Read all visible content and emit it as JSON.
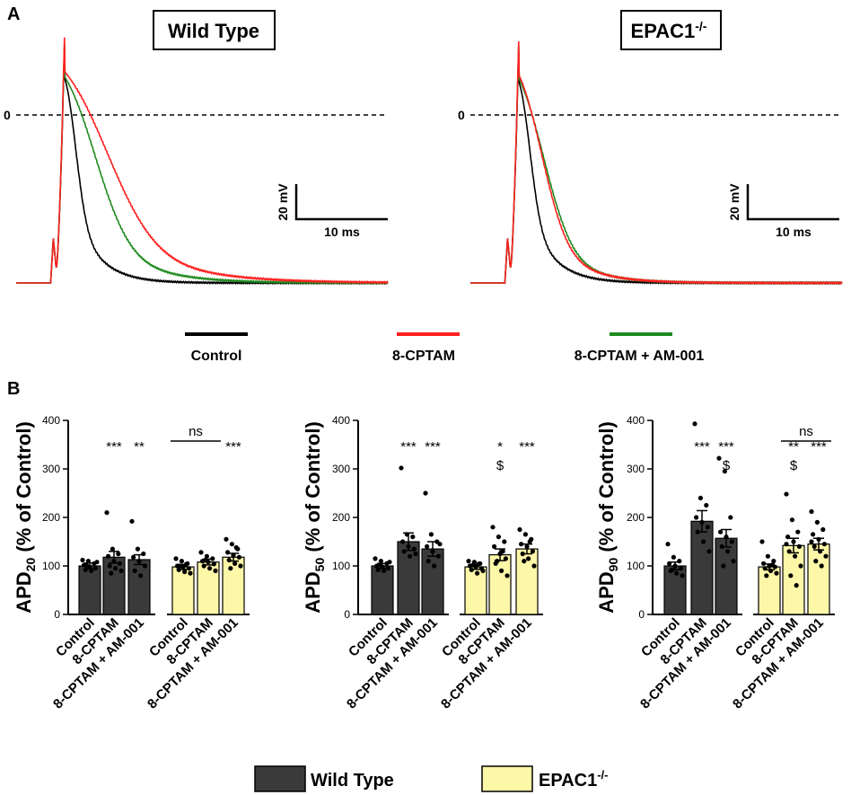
{
  "panel_a": {
    "label": "A",
    "zero_label": "0",
    "scale_bar": {
      "voltage": "20 mV",
      "time": "10 ms"
    },
    "traces": [
      {
        "title": "Wild Type",
        "title_sup": ""
      },
      {
        "title": "EPAC1",
        "title_sup": "-/-"
      }
    ],
    "legend": [
      {
        "label": "Control",
        "color": "#000000"
      },
      {
        "label": "8-CPTAM",
        "color": "#ff2020"
      },
      {
        "label": "8-CPTAM + AM-001",
        "color": "#1f8a1f"
      }
    ]
  },
  "panel_b": {
    "label": "B",
    "bar_colors": {
      "wild_type": "#3a3a3a",
      "epac": "#fdf7a8"
    },
    "legend": [
      {
        "label": "Wild Type",
        "sup": ""
      },
      {
        "label": "EPAC1",
        "sup": "-/-"
      }
    ]
  },
  "chart_data": [
    {
      "type": "line",
      "title": "Wild Type",
      "xlabel": "",
      "ylabel": "",
      "x_unit": "ms",
      "y_unit": "mV",
      "ylim": [
        -84,
        50
      ],
      "series": [
        {
          "name": "Control",
          "color": "#000000",
          "peak": 40,
          "apd50_ms": 2.6,
          "decay_ms": 3.6,
          "resting": -80
        },
        {
          "name": "8-CPTAM",
          "color": "#ff2020",
          "peak": 44,
          "apd50_ms": 10.5,
          "decay_ms": 9.0,
          "resting": -80
        },
        {
          "name": "8-CPTAM + AM-001",
          "color": "#1f8a1f",
          "peak": 41,
          "apd50_ms": 7.5,
          "decay_ms": 6.5,
          "resting": -80
        }
      ]
    },
    {
      "type": "line",
      "title": "EPAC1-/-",
      "xlabel": "",
      "ylabel": "",
      "x_unit": "ms",
      "y_unit": "mV",
      "ylim": [
        -84,
        50
      ],
      "series": [
        {
          "name": "Control",
          "color": "#000000",
          "peak": 38,
          "apd50_ms": 2.6,
          "decay_ms": 3.6,
          "resting": -80
        },
        {
          "name": "8-CPTAM",
          "color": "#ff2020",
          "peak": 42,
          "apd50_ms": 5.6,
          "decay_ms": 5.0,
          "resting": -80
        },
        {
          "name": "8-CPTAM + AM-001",
          "color": "#1f8a1f",
          "peak": 40,
          "apd50_ms": 6.2,
          "decay_ms": 5.0,
          "resting": -80
        }
      ]
    },
    {
      "type": "bar",
      "ylabel_main": "APD",
      "ylabel_sub": "20",
      "ylabel_rest": " (% of Control)",
      "ylim": [
        0,
        400
      ],
      "yticks": [
        0,
        100,
        200,
        300,
        400
      ],
      "categories": [
        "Control",
        "8-CPTAM",
        "8-CPTAM + AM-001",
        "Control",
        "8-CPTAM",
        "8-CPTAM + AM-001"
      ],
      "groups": [
        "Wild Type",
        "Wild Type",
        "Wild Type",
        "EPAC1-/-",
        "EPAC1-/-",
        "EPAC1-/-"
      ],
      "values": [
        100,
        118,
        113,
        98,
        108,
        118
      ],
      "sem": [
        6,
        12,
        10,
        5,
        6,
        8
      ],
      "points": [
        [
          112,
          110,
          105,
          102,
          98,
          95,
          92,
          90,
          108,
          100
        ],
        [
          210,
          135,
          125,
          120,
          110,
          105,
          100,
          95,
          90,
          85
        ],
        [
          192,
          135,
          125,
          118,
          110,
          100,
          90,
          80
        ],
        [
          115,
          110,
          105,
          100,
          98,
          95,
          92,
          88,
          85,
          100,
          103
        ],
        [
          128,
          120,
          115,
          110,
          108,
          104,
          100,
          95,
          90,
          112
        ],
        [
          155,
          145,
          135,
          128,
          122,
          118,
          112,
          105,
          100,
          95,
          138
        ]
      ],
      "stars": [
        "",
        "***",
        "**",
        "",
        "",
        "***"
      ],
      "dollars": [
        "",
        "",
        "",
        "",
        "",
        ""
      ],
      "brackets": [
        {
          "from": 3,
          "to": 4,
          "label": "ns"
        }
      ]
    },
    {
      "type": "bar",
      "ylabel_main": "APD",
      "ylabel_sub": "50",
      "ylabel_rest": " (% of Control)",
      "ylim": [
        0,
        400
      ],
      "yticks": [
        0,
        100,
        200,
        300,
        400
      ],
      "categories": [
        "Control",
        "8-CPTAM",
        "8-CPTAM + AM-001",
        "Control",
        "8-CPTAM",
        "8-CPTAM + AM-001"
      ],
      "groups": [
        "Wild Type",
        "Wild Type",
        "Wild Type",
        "EPAC1-/-",
        "EPAC1-/-",
        "EPAC1-/-"
      ],
      "values": [
        100,
        150,
        135,
        98,
        123,
        135
      ],
      "sem": [
        5,
        18,
        15,
        5,
        12,
        10
      ],
      "points": [
        [
          115,
          110,
          105,
          100,
          98,
          95,
          92,
          90,
          108,
          102
        ],
        [
          302,
          165,
          160,
          150,
          140,
          135,
          130,
          120,
          125
        ],
        [
          250,
          165,
          150,
          140,
          130,
          120,
          110,
          100,
          145
        ],
        [
          110,
          108,
          105,
          100,
          98,
          95,
          92,
          85,
          90,
          102,
          104
        ],
        [
          180,
          160,
          150,
          140,
          125,
          115,
          105,
          90,
          80,
          110,
          130
        ],
        [
          175,
          165,
          155,
          145,
          140,
          130,
          125,
          115,
          100,
          110,
          150
        ]
      ],
      "stars": [
        "",
        "***",
        "***",
        "",
        "*",
        "***"
      ],
      "dollars": [
        "",
        "",
        "",
        "",
        "$",
        ""
      ],
      "brackets": []
    },
    {
      "type": "bar",
      "ylabel_main": "APD",
      "ylabel_sub": "90",
      "ylabel_rest": " (% of Control)",
      "ylim": [
        0,
        400
      ],
      "yticks": [
        0,
        100,
        200,
        300,
        400
      ],
      "categories": [
        "Control",
        "8-CPTAM",
        "8-CPTAM + AM-001",
        "Control",
        "8-CPTAM",
        "8-CPTAM + AM-001"
      ],
      "groups": [
        "Wild Type",
        "Wild Type",
        "Wild Type",
        "EPAC1-/-",
        "EPAC1-/-",
        "EPAC1-/-"
      ],
      "values": [
        100,
        192,
        157,
        98,
        142,
        145
      ],
      "sem": [
        8,
        22,
        18,
        6,
        15,
        12
      ],
      "points": [
        [
          145,
          118,
          110,
          105,
          100,
          95,
          90,
          85,
          80,
          92
        ],
        [
          393,
          240,
          225,
          200,
          190,
          180,
          170,
          150,
          130
        ],
        [
          322,
          295,
          200,
          170,
          160,
          150,
          140,
          130,
          110,
          100
        ],
        [
          150,
          120,
          110,
          105,
          100,
          98,
          95,
          90,
          85,
          80,
          102
        ],
        [
          248,
          195,
          170,
          160,
          150,
          140,
          130,
          120,
          100,
          80,
          60,
          145
        ],
        [
          212,
          190,
          175,
          165,
          155,
          145,
          140,
          130,
          120,
          110,
          100,
          150
        ]
      ],
      "stars": [
        "",
        "***",
        "***",
        "",
        "**",
        "***"
      ],
      "dollars": [
        "",
        "",
        "$",
        "",
        "$",
        ""
      ],
      "brackets": [
        {
          "from": 4,
          "to": 5,
          "label": "ns"
        }
      ]
    }
  ]
}
